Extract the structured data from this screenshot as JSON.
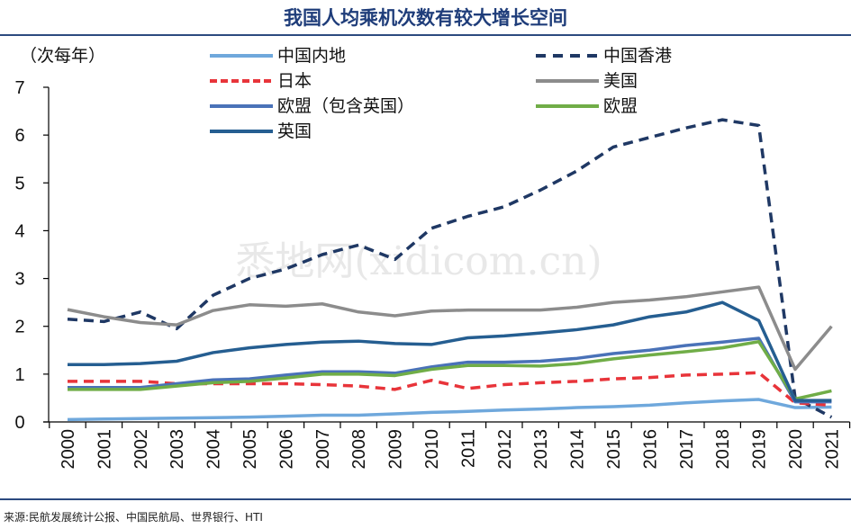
{
  "title": "我国人均乘机次数有较大增长空间",
  "source": "来源:民航发展统计公报、中国民航局、世界银行、HTI",
  "watermark": "悉地网(xidicom.cn)",
  "chart_data": {
    "type": "line",
    "title": "我国人均乘机次数有较大增长空间",
    "ylabel": "（次每年）",
    "xlabel": "",
    "ylim": [
      0,
      7
    ],
    "yticks": [
      "0",
      "1",
      "2",
      "3",
      "4",
      "5",
      "6",
      "7"
    ],
    "categories": [
      "2000",
      "2001",
      "2002",
      "2003",
      "2004",
      "2005",
      "2006",
      "2007",
      "2008",
      "2009",
      "2010",
      "2011",
      "2012",
      "2013",
      "2014",
      "2015",
      "2016",
      "2017",
      "2018",
      "2019",
      "2020",
      "2021"
    ],
    "grid": false,
    "legend_position": "top",
    "series": [
      {
        "name": "中国内地",
        "color": "#6fa8dc",
        "dash": false,
        "values": [
          0.05,
          0.06,
          0.07,
          0.08,
          0.09,
          0.1,
          0.12,
          0.14,
          0.14,
          0.17,
          0.2,
          0.22,
          0.25,
          0.27,
          0.3,
          0.32,
          0.35,
          0.4,
          0.44,
          0.47,
          0.3,
          0.31
        ]
      },
      {
        "name": "中国香港",
        "color": "#1f3864",
        "dash": true,
        "values": [
          2.15,
          2.1,
          2.3,
          1.95,
          2.65,
          3.0,
          3.2,
          3.5,
          3.7,
          3.4,
          4.05,
          4.3,
          4.5,
          4.85,
          5.25,
          5.75,
          5.95,
          6.15,
          6.32,
          6.2,
          0.5,
          0.1
        ]
      },
      {
        "name": "日本",
        "color": "#e8343a",
        "dash": true,
        "values": [
          0.85,
          0.85,
          0.85,
          0.8,
          0.8,
          0.8,
          0.8,
          0.78,
          0.75,
          0.68,
          0.87,
          0.7,
          0.78,
          0.82,
          0.85,
          0.9,
          0.93,
          0.98,
          1.0,
          1.03,
          0.4,
          0.35
        ]
      },
      {
        "name": "美国",
        "color": "#8c8c8c",
        "dash": false,
        "values": [
          2.35,
          2.2,
          2.08,
          2.03,
          2.33,
          2.45,
          2.42,
          2.47,
          2.3,
          2.22,
          2.32,
          2.34,
          2.34,
          2.34,
          2.4,
          2.5,
          2.55,
          2.62,
          2.72,
          2.82,
          1.1,
          2.0
        ]
      },
      {
        "name": "欧盟（包含英国）",
        "color": "#4a72b8",
        "dash": false,
        "values": [
          0.72,
          0.72,
          0.72,
          0.8,
          0.88,
          0.9,
          0.98,
          1.05,
          1.05,
          1.02,
          1.15,
          1.25,
          1.25,
          1.27,
          1.33,
          1.43,
          1.5,
          1.6,
          1.67,
          1.75,
          0.42,
          0.42
        ]
      },
      {
        "name": "欧盟",
        "color": "#70ad47",
        "dash": false,
        "values": [
          0.68,
          0.68,
          0.68,
          0.75,
          0.82,
          0.85,
          0.92,
          1.0,
          1.0,
          0.97,
          1.1,
          1.18,
          1.18,
          1.17,
          1.22,
          1.32,
          1.4,
          1.47,
          1.55,
          1.68,
          0.48,
          0.65
        ]
      },
      {
        "name": "英国",
        "color": "#255e91",
        "dash": false,
        "values": [
          1.2,
          1.2,
          1.22,
          1.27,
          1.45,
          1.55,
          1.62,
          1.67,
          1.69,
          1.64,
          1.62,
          1.76,
          1.8,
          1.86,
          1.93,
          2.03,
          2.2,
          2.3,
          2.5,
          2.12,
          0.45,
          0.45
        ]
      }
    ]
  }
}
